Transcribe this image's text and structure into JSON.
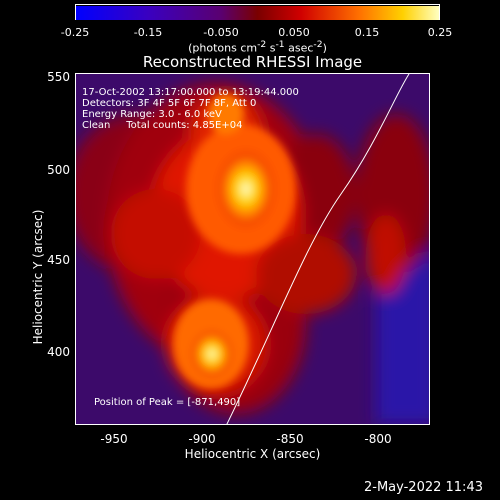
{
  "colorbar": {
    "ticks": [
      "-0.25",
      "-0.15",
      "-0.050",
      "0.050",
      "0.15",
      "0.25"
    ],
    "unit_html": "(photons cm<sup>-2</sup> s<sup>-1</sup> asec<sup>-2</sup>)"
  },
  "title": "Reconstructed RHESSI Image",
  "info": {
    "line1": "17-Oct-2002 13:17:00.000 to 13:19:44.000",
    "line2": "Detectors: 3F 4F 5F 6F 7F 8F, Att 0",
    "line3": "Energy Range: 3.0 - 6.0 keV",
    "line4": "Clean     Total counts: 4.85E+04",
    "peak": "Position of Peak = [-871,490]"
  },
  "axes": {
    "xlabel": "Heliocentric X (arcsec)",
    "ylabel": "Heliocentric Y (arcsec)",
    "xticks": [
      "-950",
      "-900",
      "-850",
      "-800"
    ],
    "yticks": [
      "550",
      "500",
      "450",
      "400"
    ]
  },
  "footer": {
    "date": "2-May-2022 11:43"
  }
}
